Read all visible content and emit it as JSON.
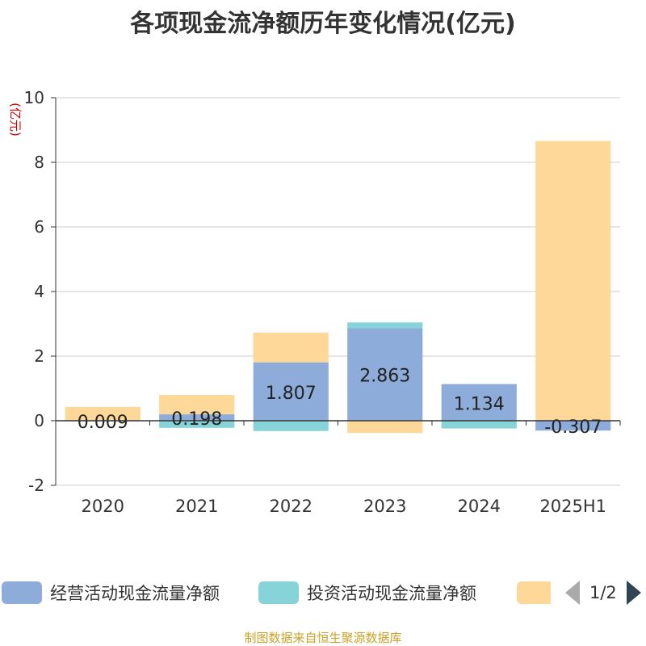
{
  "chart_data": {
    "type": "bar",
    "stacked": true,
    "title": "各项现金流净额历年变化情况(亿元)",
    "ylabel": "(亿元)",
    "xlabel": "",
    "categories": [
      "2020",
      "2021",
      "2022",
      "2023",
      "2024",
      "2025H1"
    ],
    "ylim": [
      -2,
      10
    ],
    "yticks": [
      -2,
      0,
      2,
      4,
      6,
      8,
      10
    ],
    "grid": true,
    "series": [
      {
        "name": "经营活动现金流量净额",
        "color": "#8eacd9",
        "values": [
          0.009,
          0.198,
          1.807,
          2.863,
          1.134,
          -0.307
        ],
        "labels": [
          "0.009",
          "0.198",
          "1.807",
          "2.863",
          "1.134",
          "-0.307"
        ]
      },
      {
        "name": "投资活动现金流量净额",
        "color": "#86d4d7",
        "values": [
          -0.02,
          -0.22,
          -0.32,
          0.18,
          -0.24,
          0.0
        ]
      },
      {
        "name": "",
        "color": "#fdd899",
        "values": [
          0.42,
          0.6,
          0.92,
          -0.38,
          0.0,
          8.66
        ]
      }
    ]
  },
  "legend": {
    "items": [
      {
        "name": "经营活动现金流量净额",
        "color": "#8eacd9"
      },
      {
        "name": "投资活动现金流量净额",
        "color": "#86d4d7"
      },
      {
        "name": "",
        "color": "#fdd899"
      }
    ],
    "page": "1/2"
  },
  "source_note": "制图数据来自恒生聚源数据库"
}
